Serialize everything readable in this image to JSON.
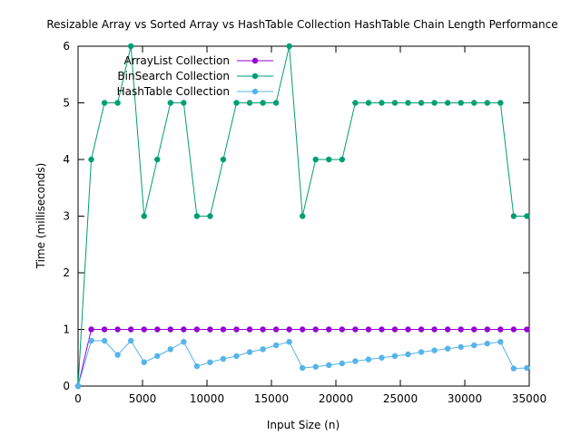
{
  "chart_data": {
    "type": "line",
    "title": "Resizable Array vs Sorted Array vs HashTable Collection HashTable Chain Length Performance",
    "xlabel": "Input Size (n)",
    "ylabel": "Time (milliseconds)",
    "xlim": [
      0,
      35000
    ],
    "ylim": [
      0,
      6
    ],
    "xticks": [
      0,
      5000,
      10000,
      15000,
      20000,
      25000,
      30000,
      35000
    ],
    "yticks": [
      0,
      1,
      2,
      3,
      4,
      5,
      6
    ],
    "grid": false,
    "legend_position": "top-left",
    "x": [
      0,
      1024,
      2048,
      3072,
      4096,
      5120,
      6144,
      7168,
      8192,
      9216,
      10240,
      11264,
      12288,
      13312,
      14336,
      15360,
      16384,
      17408,
      18432,
      19456,
      20480,
      21504,
      22528,
      23552,
      24576,
      25600,
      26624,
      27648,
      28672,
      29696,
      30720,
      31744,
      32768,
      33792,
      34816
    ],
    "series": [
      {
        "name": "ArrayList Collection",
        "color": "#9400d3",
        "values": [
          0,
          1,
          1,
          1,
          1,
          1,
          1,
          1,
          1,
          1,
          1,
          1,
          1,
          1,
          1,
          1,
          1,
          1,
          1,
          1,
          1,
          1,
          1,
          1,
          1,
          1,
          1,
          1,
          1,
          1,
          1,
          1,
          1,
          1,
          1
        ]
      },
      {
        "name": "BinSearch Collection",
        "color": "#009e73",
        "values": [
          0,
          4,
          5,
          5,
          6,
          3,
          4,
          5,
          5,
          3,
          3,
          4,
          5,
          5,
          5,
          5,
          6,
          3,
          4,
          4,
          4,
          5,
          5,
          5,
          5,
          5,
          5,
          5,
          5,
          5,
          5,
          5,
          5,
          3,
          3
        ]
      },
      {
        "name": "HashTable Collection",
        "color": "#56b4e9",
        "values": [
          0,
          0.8,
          0.8,
          0.55,
          0.8,
          0.42,
          0.53,
          0.65,
          0.78,
          0.35,
          0.42,
          0.48,
          0.53,
          0.6,
          0.65,
          0.72,
          0.78,
          0.32,
          0.34,
          0.37,
          0.4,
          0.44,
          0.47,
          0.5,
          0.53,
          0.56,
          0.6,
          0.63,
          0.66,
          0.69,
          0.72,
          0.75,
          0.78,
          0.31,
          0.32
        ]
      }
    ]
  }
}
